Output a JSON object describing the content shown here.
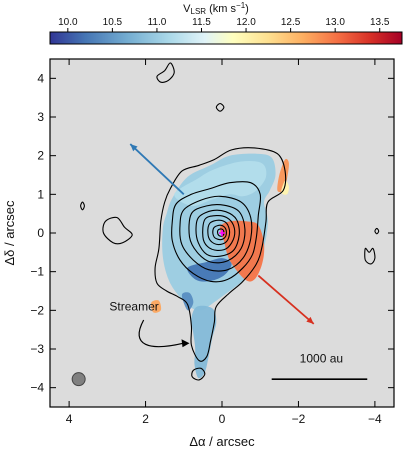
{
  "chart_data": {
    "type": "heatmap",
    "title": "",
    "colorbar": {
      "label_main": "V",
      "label_sub": "LSR",
      "label_unit": " (km s",
      "label_exp": "−1",
      "label_close": ")",
      "ticks": [
        "10.0",
        "10.5",
        "11.0",
        "11.5",
        "12.0",
        "12.5",
        "13.0",
        "13.5"
      ],
      "tick_values": [
        10.0,
        10.5,
        11.0,
        11.5,
        12.0,
        12.5,
        13.0,
        13.5
      ],
      "range": [
        9.8,
        13.75
      ],
      "colormap": "RdYlBu_r"
    },
    "xlabel": "Δα / arcsec",
    "ylabel": "Δδ / arcsec",
    "xlim": [
      4.5,
      -4.5
    ],
    "ylim": [
      -4.5,
      4.5
    ],
    "x_ticks": [
      "4",
      "2",
      "0",
      "−2",
      "−4"
    ],
    "x_tick_values": [
      4,
      2,
      0,
      -2,
      -4
    ],
    "y_ticks": [
      "4",
      "3",
      "2",
      "1",
      "0",
      "−1",
      "−2",
      "−3",
      "−4"
    ],
    "y_tick_values": [
      4,
      3,
      2,
      1,
      0,
      -1,
      -2,
      -3,
      -4
    ],
    "background": "#dcdcdc",
    "source_position": [
      0.0,
      0.0
    ],
    "outflow_arrows": [
      {
        "color": "#2f79b5",
        "from": [
          1.0,
          1.0
        ],
        "to": [
          2.4,
          2.3
        ]
      },
      {
        "color": "#d7301f",
        "from": [
          -0.95,
          -1.1
        ],
        "to": [
          -2.4,
          -2.35
        ]
      }
    ],
    "annotations": [
      {
        "text": "Streamer",
        "x": 2.3,
        "y": -2.0
      },
      {
        "text": "1000 au",
        "x": -2.6,
        "y": -3.35
      }
    ],
    "scalebar": {
      "x_start": -1.3,
      "x_end": -3.8,
      "y": -3.78
    },
    "beam": {
      "x": 3.75,
      "y": -3.78,
      "size": 0.17
    },
    "velocity_patches": [
      {
        "name": "envelope-core",
        "v": 11.0,
        "points": [
          [
            1.3,
            0.9
          ],
          [
            0.9,
            1.45
          ],
          [
            0.3,
            1.75
          ],
          [
            -0.2,
            2.0
          ],
          [
            -0.9,
            2.05
          ],
          [
            -1.3,
            1.95
          ],
          [
            -1.4,
            1.5
          ],
          [
            -1.25,
            1.1
          ],
          [
            -1.1,
            0.8
          ],
          [
            -1.2,
            0.3
          ],
          [
            -1.1,
            -0.4
          ],
          [
            -0.95,
            -0.9
          ],
          [
            -0.6,
            -1.2
          ],
          [
            -0.2,
            -1.5
          ],
          [
            0.15,
            -1.75
          ],
          [
            0.55,
            -2.0
          ],
          [
            0.85,
            -1.9
          ],
          [
            1.15,
            -1.6
          ],
          [
            1.4,
            -1.2
          ],
          [
            1.55,
            -0.6
          ],
          [
            1.55,
            0.1
          ],
          [
            1.45,
            0.5
          ]
        ]
      },
      {
        "name": "streamer-tail",
        "v": 10.8,
        "points": [
          [
            0.65,
            -1.9
          ],
          [
            0.25,
            -1.95
          ],
          [
            0.15,
            -2.3
          ],
          [
            0.25,
            -2.7
          ],
          [
            0.35,
            -3.2
          ],
          [
            0.45,
            -3.6
          ],
          [
            0.62,
            -3.75
          ],
          [
            0.72,
            -3.4
          ],
          [
            0.7,
            -3.0
          ],
          [
            0.75,
            -2.6
          ],
          [
            0.8,
            -2.2
          ]
        ]
      },
      {
        "name": "redshifted-lobe",
        "v": 13.0,
        "points": [
          [
            -0.6,
            -1.2
          ],
          [
            -0.2,
            -0.7
          ],
          [
            -0.05,
            -0.2
          ],
          [
            0.05,
            0.15
          ],
          [
            -0.2,
            0.3
          ],
          [
            -0.65,
            0.3
          ],
          [
            -0.95,
            0.2
          ],
          [
            -1.1,
            -0.3
          ],
          [
            -1.05,
            -0.8
          ],
          [
            -0.85,
            -1.2
          ]
        ]
      },
      {
        "name": "redshifted-ridge",
        "v": 12.8,
        "points": [
          [
            -1.45,
            1.1
          ],
          [
            -1.5,
            1.5
          ],
          [
            -1.65,
            1.9
          ],
          [
            -1.75,
            1.8
          ],
          [
            -1.7,
            1.4
          ],
          [
            -1.6,
            1.1
          ]
        ]
      },
      {
        "name": "yellow-ridge",
        "v": 12.0,
        "points": [
          [
            -1.55,
            1.05
          ],
          [
            -1.65,
            1.35
          ],
          [
            -1.75,
            1.2
          ],
          [
            -1.7,
            1.0
          ]
        ]
      },
      {
        "name": "blue-bar",
        "v": 10.2,
        "points": [
          [
            0.9,
            -0.9
          ],
          [
            0.4,
            -0.75
          ],
          [
            0.0,
            -0.65
          ],
          [
            -0.25,
            -0.8
          ],
          [
            -0.05,
            -1.1
          ],
          [
            0.35,
            -1.25
          ],
          [
            0.7,
            -1.2
          ]
        ]
      },
      {
        "name": "blue-streamer-knot",
        "v": 10.4,
        "points": [
          [
            1.05,
            -1.6
          ],
          [
            0.85,
            -1.55
          ],
          [
            0.75,
            -1.8
          ],
          [
            0.9,
            -2.0
          ]
        ]
      },
      {
        "name": "red-streamer-knot",
        "v": 12.7,
        "points": [
          [
            1.85,
            -1.8
          ],
          [
            1.65,
            -1.75
          ],
          [
            1.6,
            -2.0
          ],
          [
            1.8,
            -2.05
          ]
        ]
      },
      {
        "name": "outer-light",
        "v": 11.2,
        "points": [
          [
            1.25,
            1.0
          ],
          [
            0.65,
            1.4
          ],
          [
            0.2,
            1.65
          ],
          [
            -0.5,
            1.85
          ],
          [
            -1.05,
            1.8
          ],
          [
            -1.15,
            1.45
          ],
          [
            -0.9,
            1.1
          ],
          [
            -0.55,
            0.95
          ],
          [
            -0.2,
            1.0
          ],
          [
            0.3,
            0.85
          ],
          [
            0.8,
            0.7
          ]
        ]
      }
    ],
    "contours": [
      {
        "level": 1,
        "points": [
          [
            1.35,
            1.15
          ],
          [
            1.05,
            1.6
          ],
          [
            0.6,
            1.75
          ],
          [
            0.2,
            1.9
          ],
          [
            -0.25,
            2.15
          ],
          [
            -0.85,
            2.2
          ],
          [
            -1.45,
            2.05
          ],
          [
            -1.65,
            1.6
          ],
          [
            -1.6,
            1.1
          ],
          [
            -1.2,
            0.8
          ],
          [
            -1.15,
            0.3
          ],
          [
            -1.05,
            -0.35
          ],
          [
            -0.9,
            -0.8
          ],
          [
            -0.55,
            -1.25
          ],
          [
            -0.2,
            -1.55
          ],
          [
            0.15,
            -1.9
          ],
          [
            0.2,
            -2.3
          ],
          [
            0.3,
            -2.8
          ],
          [
            0.4,
            -3.2
          ],
          [
            0.6,
            -3.3
          ],
          [
            0.8,
            -2.9
          ],
          [
            0.8,
            -2.4
          ],
          [
            0.9,
            -1.85
          ],
          [
            1.15,
            -1.65
          ],
          [
            1.45,
            -1.5
          ],
          [
            1.7,
            -1.3
          ],
          [
            1.75,
            -0.9
          ],
          [
            1.65,
            -0.4
          ],
          [
            1.6,
            0.3
          ],
          [
            1.5,
            0.8
          ]
        ]
      },
      {
        "level": 2,
        "points": [
          [
            1.2,
            0.75
          ],
          [
            0.8,
            1.0
          ],
          [
            0.3,
            1.15
          ],
          [
            -0.2,
            1.3
          ],
          [
            -0.75,
            1.3
          ],
          [
            -1.0,
            1.0
          ],
          [
            -0.95,
            0.45
          ],
          [
            -0.9,
            -0.1
          ],
          [
            -0.8,
            -0.55
          ],
          [
            -0.55,
            -0.9
          ],
          [
            -0.15,
            -1.2
          ],
          [
            0.3,
            -1.25
          ],
          [
            0.75,
            -1.05
          ],
          [
            1.1,
            -0.7
          ],
          [
            1.3,
            -0.2
          ],
          [
            1.3,
            0.3
          ]
        ]
      },
      {
        "level": 3,
        "points": [
          [
            1.0,
            0.6
          ],
          [
            0.55,
            0.85
          ],
          [
            0.05,
            0.95
          ],
          [
            -0.5,
            0.8
          ],
          [
            -0.75,
            0.4
          ],
          [
            -0.75,
            -0.15
          ],
          [
            -0.55,
            -0.65
          ],
          [
            -0.15,
            -0.95
          ],
          [
            0.35,
            -0.95
          ],
          [
            0.75,
            -0.7
          ],
          [
            1.05,
            -0.3
          ],
          [
            1.1,
            0.2
          ]
        ]
      },
      {
        "level": 4,
        "points": [
          [
            0.8,
            0.5
          ],
          [
            0.4,
            0.7
          ],
          [
            -0.05,
            0.72
          ],
          [
            -0.45,
            0.55
          ],
          [
            -0.6,
            0.1
          ],
          [
            -0.5,
            -0.4
          ],
          [
            -0.15,
            -0.72
          ],
          [
            0.3,
            -0.75
          ],
          [
            0.65,
            -0.5
          ],
          [
            0.85,
            -0.1
          ]
        ]
      },
      {
        "level": 5,
        "points": [
          [
            0.6,
            0.42
          ],
          [
            0.25,
            0.58
          ],
          [
            -0.1,
            0.55
          ],
          [
            -0.38,
            0.35
          ],
          [
            -0.45,
            -0.05
          ],
          [
            -0.3,
            -0.45
          ],
          [
            0.05,
            -0.6
          ],
          [
            0.4,
            -0.55
          ],
          [
            0.62,
            -0.25
          ],
          [
            0.68,
            0.1
          ]
        ]
      },
      {
        "level": 6,
        "points": [
          [
            0.45,
            0.35
          ],
          [
            0.15,
            0.45
          ],
          [
            -0.12,
            0.4
          ],
          [
            -0.3,
            0.2
          ],
          [
            -0.32,
            -0.1
          ],
          [
            -0.15,
            -0.38
          ],
          [
            0.12,
            -0.45
          ],
          [
            0.38,
            -0.35
          ],
          [
            0.5,
            -0.1
          ]
        ]
      },
      {
        "level": 7,
        "points": [
          [
            0.32,
            0.25
          ],
          [
            0.08,
            0.33
          ],
          [
            -0.12,
            0.25
          ],
          [
            -0.2,
            0.02
          ],
          [
            -0.12,
            -0.22
          ],
          [
            0.1,
            -0.3
          ],
          [
            0.3,
            -0.2
          ],
          [
            0.37,
            0.0
          ]
        ]
      },
      {
        "level": 8,
        "points": [
          [
            0.2,
            0.15
          ],
          [
            0.02,
            0.2
          ],
          [
            -0.1,
            0.1
          ],
          [
            -0.1,
            -0.08
          ],
          [
            0.02,
            -0.17
          ],
          [
            0.18,
            -0.13
          ],
          [
            0.24,
            0.0
          ]
        ]
      },
      {
        "level": 9,
        "points": [
          [
            0.1,
            0.08
          ],
          [
            0.0,
            0.1
          ],
          [
            -0.05,
            0.03
          ],
          [
            -0.03,
            -0.06
          ],
          [
            0.05,
            -0.08
          ],
          [
            0.11,
            -0.02
          ]
        ]
      },
      {
        "level": 1,
        "points": [
          [
            1.5,
            4.2
          ],
          [
            1.35,
            4.4
          ],
          [
            1.25,
            4.15
          ],
          [
            1.4,
            3.95
          ],
          [
            1.6,
            3.9
          ],
          [
            1.7,
            4.05
          ]
        ]
      },
      {
        "level": 1,
        "points": [
          [
            0.15,
            3.25
          ],
          [
            0.05,
            3.35
          ],
          [
            -0.05,
            3.25
          ],
          [
            0.05,
            3.15
          ]
        ]
      },
      {
        "level": 1,
        "points": [
          [
            3.05,
            0.3
          ],
          [
            2.75,
            0.4
          ],
          [
            2.55,
            0.15
          ],
          [
            2.35,
            -0.05
          ],
          [
            2.6,
            -0.25
          ],
          [
            2.85,
            -0.25
          ],
          [
            3.1,
            0.0
          ]
        ]
      },
      {
        "level": 1,
        "points": [
          [
            3.7,
            0.7
          ],
          [
            3.65,
            0.8
          ],
          [
            3.6,
            0.7
          ],
          [
            3.65,
            0.6
          ]
        ]
      },
      {
        "level": 1,
        "points": [
          [
            -3.95,
            -0.4
          ],
          [
            -3.85,
            -0.5
          ],
          [
            -3.75,
            -0.4
          ],
          [
            -3.75,
            -0.7
          ],
          [
            -3.9,
            -0.8
          ],
          [
            -4.0,
            -0.65
          ]
        ]
      },
      {
        "level": 1,
        "points": [
          [
            -4.1,
            0.05
          ],
          [
            -4.05,
            0.12
          ],
          [
            -4.0,
            0.05
          ],
          [
            -4.05,
            -0.02
          ]
        ]
      },
      {
        "level": 1,
        "points": [
          [
            0.75,
            -3.55
          ],
          [
            0.55,
            -3.5
          ],
          [
            0.45,
            -3.65
          ],
          [
            0.6,
            -3.8
          ],
          [
            0.78,
            -3.72
          ]
        ]
      }
    ]
  }
}
